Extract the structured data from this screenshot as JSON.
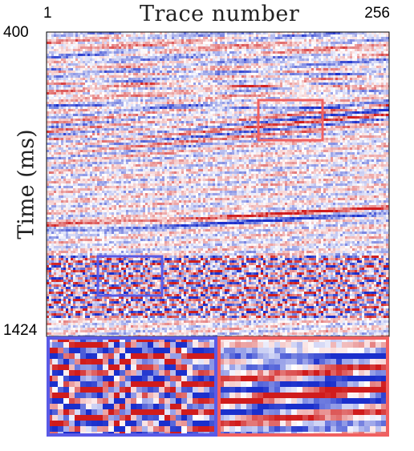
{
  "axes": {
    "x_title": "Trace number",
    "x_tick_start": "1",
    "x_tick_end": "256",
    "y_title": "Time (ms)",
    "y_tick_top": "400",
    "y_tick_bottom": "1424"
  },
  "colormap": {
    "negative": "#d01c1c",
    "zero": "#ffffff",
    "positive": "#1a2fcc"
  },
  "highlight_colors": {
    "red_box": "#f06060",
    "blue_box": "#5a5ae6"
  }
}
